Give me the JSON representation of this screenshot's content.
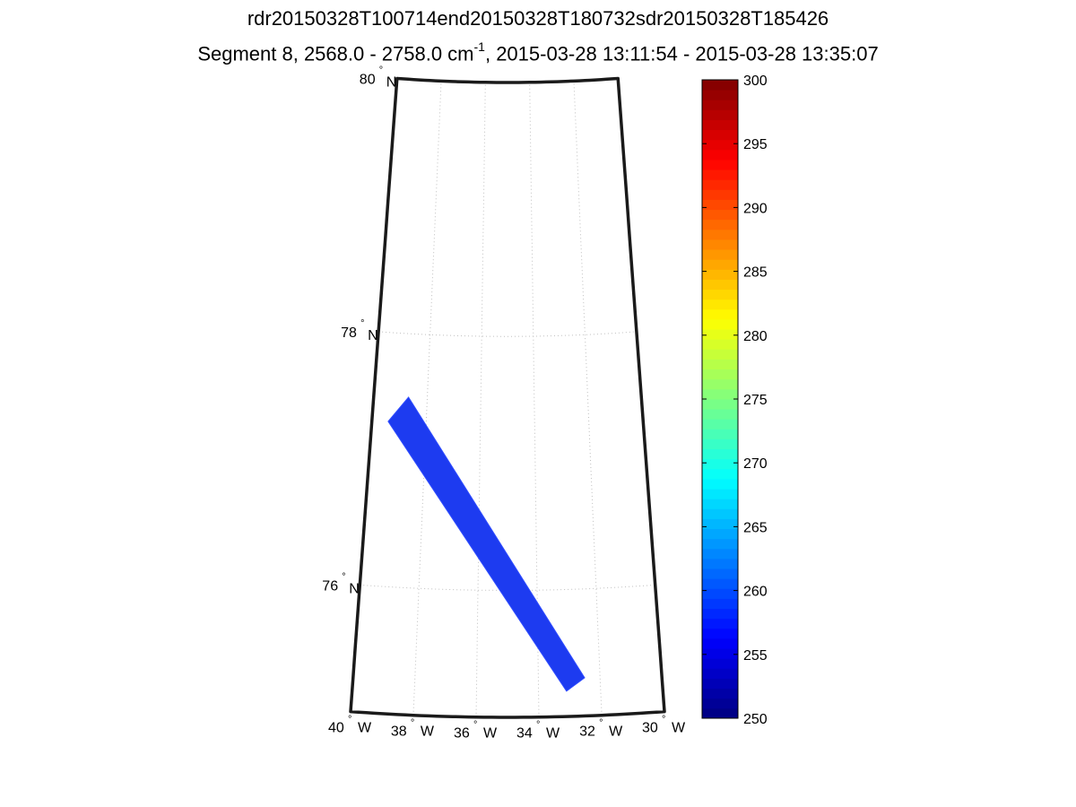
{
  "title_line1": "rdr20150328T100714end20150328T180732sdr20150328T185426",
  "title_line2": {
    "prefix": "Segment 8, 2568.0 - 2758.0 cm",
    "superscript": "-1",
    "suffix": ", 2015-03-28 13:11:54 - 2015-03-28 13:35:07"
  },
  "map": {
    "projection": "conic",
    "lat_range": [
      75,
      80
    ],
    "lon_range": [
      -40,
      -30
    ],
    "lat_labels": [
      {
        "lat": 80,
        "num": "80",
        "deg": "°",
        "hemi": "N"
      },
      {
        "lat": 78,
        "num": "78",
        "deg": "°",
        "hemi": "N"
      },
      {
        "lat": 76,
        "num": "76",
        "deg": "°",
        "hemi": "N"
      }
    ],
    "lon_labels": [
      {
        "lon": -40,
        "num": "40",
        "deg": "°",
        "hemi": "W"
      },
      {
        "lon": -38,
        "num": "38",
        "deg": "°",
        "hemi": "W"
      },
      {
        "lon": -36,
        "num": "36",
        "deg": "°",
        "hemi": "W"
      },
      {
        "lon": -34,
        "num": "34",
        "deg": "°",
        "hemi": "W"
      },
      {
        "lon": -32,
        "num": "32",
        "deg": "°",
        "hemi": "W"
      },
      {
        "lon": -30,
        "num": "30",
        "deg": "°",
        "hemi": "W"
      }
    ],
    "grid": true,
    "swath": {
      "value": 256,
      "color": "#1d3bf0",
      "corners_latlon": [
        [
          77.3,
          -39.4
        ],
        [
          77.5,
          -38.7
        ],
        [
          75.3,
          -32.5
        ],
        [
          75.2,
          -33.1
        ]
      ]
    }
  },
  "colorbar": {
    "min": 250,
    "max": 300,
    "colormap": "jet",
    "tick_labels": [
      "250",
      "255",
      "260",
      "265",
      "270",
      "275",
      "280",
      "285",
      "290",
      "295",
      "300"
    ]
  }
}
